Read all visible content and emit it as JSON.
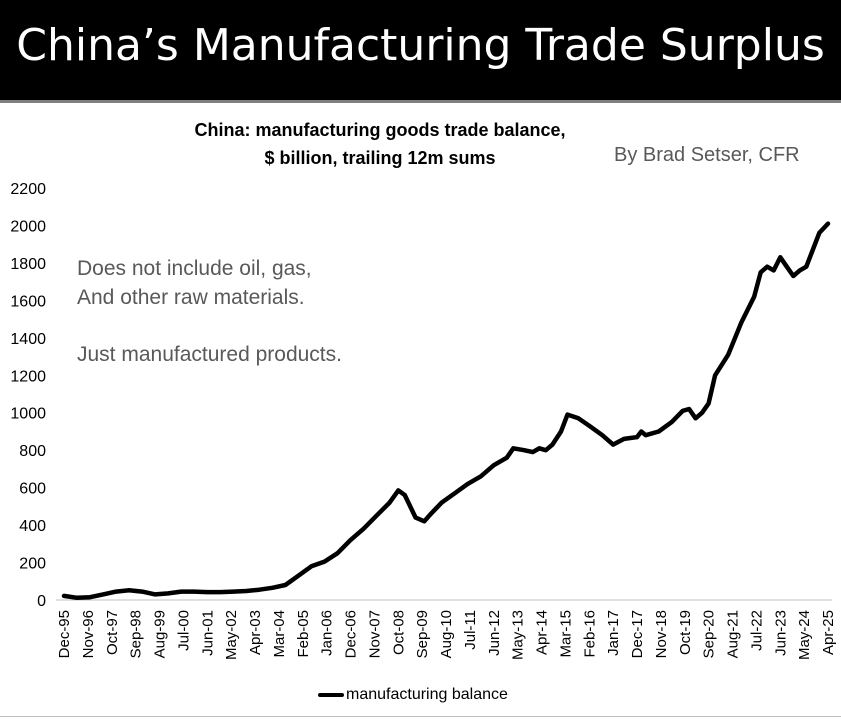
{
  "banner": {
    "title": "China’s Manufacturing Trade Surplus"
  },
  "credit": "By Brad Setser, CFR",
  "notes": [
    "Does not include oil, gas,",
    "And other raw materials.",
    "Just manufactured products."
  ],
  "chart_data": {
    "type": "line",
    "title_lines": [
      "China: manufacturing goods trade balance,",
      "$ billion, trailing 12m sums"
    ],
    "xlabel": "",
    "ylabel": "",
    "ylim": [
      0,
      2200
    ],
    "ytick_values": [
      0,
      200,
      400,
      600,
      800,
      1000,
      1200,
      1400,
      1600,
      1800,
      2000,
      2200
    ],
    "xlim": [
      "1995-12",
      "2025-04"
    ],
    "x_tick_labels": [
      "Dec-95",
      "Nov-96",
      "Oct-97",
      "Sep-98",
      "Aug-99",
      "Jul-00",
      "Jun-01",
      "May-02",
      "Apr-03",
      "Mar-04",
      "Feb-05",
      "Jan-06",
      "Dec-06",
      "Nov-07",
      "Oct-08",
      "Sep-09",
      "Aug-10",
      "Jul-11",
      "Jun-12",
      "May-13",
      "Apr-14",
      "Mar-15",
      "Feb-16",
      "Jan-17",
      "Dec-17",
      "Nov-18",
      "Oct-19",
      "Sep-20",
      "Aug-21",
      "Jul-22",
      "Jun-23",
      "May-24",
      "Apr-25"
    ],
    "gridlines": false,
    "legend_position": "bottom",
    "series": [
      {
        "name": "manufacturing balance",
        "color": "#000000",
        "points": [
          [
            "1995-12",
            22
          ],
          [
            "1996-06",
            12
          ],
          [
            "1996-12",
            15
          ],
          [
            "1997-06",
            30
          ],
          [
            "1997-12",
            45
          ],
          [
            "1998-06",
            52
          ],
          [
            "1998-12",
            45
          ],
          [
            "1999-06",
            30
          ],
          [
            "1999-12",
            35
          ],
          [
            "2000-06",
            45
          ],
          [
            "2000-12",
            45
          ],
          [
            "2001-06",
            42
          ],
          [
            "2001-12",
            42
          ],
          [
            "2002-06",
            45
          ],
          [
            "2002-12",
            48
          ],
          [
            "2003-06",
            55
          ],
          [
            "2003-12",
            65
          ],
          [
            "2004-06",
            80
          ],
          [
            "2004-12",
            130
          ],
          [
            "2005-06",
            180
          ],
          [
            "2005-12",
            205
          ],
          [
            "2006-06",
            250
          ],
          [
            "2006-12",
            320
          ],
          [
            "2007-06",
            380
          ],
          [
            "2007-12",
            450
          ],
          [
            "2008-06",
            520
          ],
          [
            "2008-10",
            585
          ],
          [
            "2009-01",
            560
          ],
          [
            "2009-06",
            440
          ],
          [
            "2009-10",
            420
          ],
          [
            "2010-01",
            460
          ],
          [
            "2010-06",
            520
          ],
          [
            "2010-12",
            570
          ],
          [
            "2011-06",
            620
          ],
          [
            "2011-12",
            660
          ],
          [
            "2012-06",
            720
          ],
          [
            "2012-12",
            760
          ],
          [
            "2013-03",
            810
          ],
          [
            "2013-08",
            800
          ],
          [
            "2013-12",
            790
          ],
          [
            "2014-03",
            810
          ],
          [
            "2014-06",
            800
          ],
          [
            "2014-09",
            830
          ],
          [
            "2015-01",
            900
          ],
          [
            "2015-04",
            990
          ],
          [
            "2015-09",
            970
          ],
          [
            "2016-02",
            930
          ],
          [
            "2016-08",
            880
          ],
          [
            "2017-01",
            830
          ],
          [
            "2017-06",
            860
          ],
          [
            "2017-12",
            870
          ],
          [
            "2018-02",
            900
          ],
          [
            "2018-04",
            880
          ],
          [
            "2018-10",
            900
          ],
          [
            "2019-04",
            950
          ],
          [
            "2019-09",
            1010
          ],
          [
            "2019-12",
            1020
          ],
          [
            "2020-03",
            970
          ],
          [
            "2020-06",
            1000
          ],
          [
            "2020-09",
            1050
          ],
          [
            "2020-12",
            1200
          ],
          [
            "2021-06",
            1310
          ],
          [
            "2021-12",
            1480
          ],
          [
            "2022-06",
            1620
          ],
          [
            "2022-09",
            1750
          ],
          [
            "2022-12",
            1780
          ],
          [
            "2023-03",
            1760
          ],
          [
            "2023-06",
            1830
          ],
          [
            "2023-09",
            1780
          ],
          [
            "2023-12",
            1730
          ],
          [
            "2024-03",
            1760
          ],
          [
            "2024-06",
            1780
          ],
          [
            "2024-09",
            1870
          ],
          [
            "2024-12",
            1960
          ],
          [
            "2025-04",
            2010
          ]
        ]
      }
    ]
  }
}
